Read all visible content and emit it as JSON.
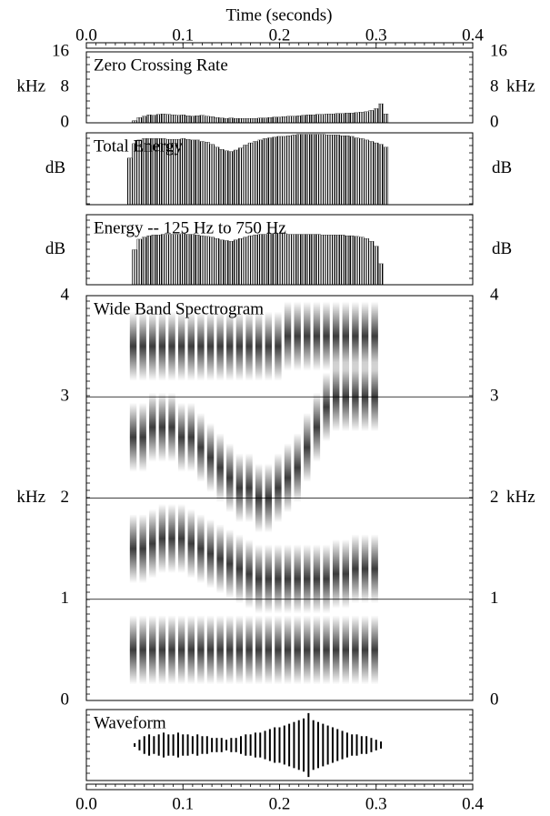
{
  "chart_data": [
    {
      "type": "bar",
      "title": "Zero Crossing Rate",
      "xlabel": "Time (seconds)",
      "ylabel": "kHz",
      "xlim": [
        0,
        0.4
      ],
      "xticks": [
        {
          "value": 0,
          "label": "0.0"
        },
        0.1,
        0.2,
        0.3,
        0.4
      ],
      "ylim": [
        0,
        16
      ],
      "yticks": [
        0,
        8,
        16
      ],
      "color": "#000000",
      "x": [
        0.045,
        0.05,
        0.055,
        0.06,
        0.065,
        0.07,
        0.075,
        0.08,
        0.085,
        0.09,
        0.095,
        0.1,
        0.105,
        0.11,
        0.115,
        0.12,
        0.125,
        0.13,
        0.135,
        0.14,
        0.145,
        0.15,
        0.155,
        0.16,
        0.165,
        0.17,
        0.175,
        0.18,
        0.185,
        0.19,
        0.195,
        0.2,
        0.205,
        0.21,
        0.215,
        0.22,
        0.225,
        0.23,
        0.235,
        0.24,
        0.245,
        0.25,
        0.255,
        0.26,
        0.265,
        0.27,
        0.275,
        0.28,
        0.285,
        0.29,
        0.295,
        0.3,
        0.305,
        0.31,
        0.315
      ],
      "values": [
        0,
        0.5,
        1.2,
        1.5,
        1.8,
        1.7,
        1.9,
        2,
        1.9,
        1.8,
        1.7,
        1.8,
        1.6,
        1.5,
        1.6,
        1.7,
        1.5,
        1.4,
        1.2,
        1.1,
        1.0,
        1.1,
        1.0,
        1.0,
        1.0,
        1.0,
        1.0,
        1.1,
        1.1,
        1.2,
        1.3,
        1.3,
        1.4,
        1.5,
        1.5,
        1.6,
        1.7,
        1.8,
        1.8,
        1.9,
        1.9,
        2.0,
        2.0,
        2.1,
        2.1,
        2.2,
        2.2,
        2.3,
        2.4,
        2.5,
        2.8,
        3.2,
        4.3,
        2.0,
        0
      ]
    },
    {
      "type": "bar",
      "title": "Total Energy",
      "ylabel": "dB",
      "xlim": [
        0,
        0.4
      ],
      "ylim": [
        0,
        100
      ],
      "color": "#000000",
      "x": [
        0.045,
        0.05,
        0.055,
        0.06,
        0.065,
        0.07,
        0.075,
        0.08,
        0.085,
        0.09,
        0.095,
        0.1,
        0.105,
        0.11,
        0.115,
        0.12,
        0.125,
        0.13,
        0.135,
        0.14,
        0.145,
        0.15,
        0.155,
        0.16,
        0.165,
        0.17,
        0.175,
        0.18,
        0.185,
        0.19,
        0.195,
        0.2,
        0.205,
        0.21,
        0.215,
        0.22,
        0.225,
        0.23,
        0.235,
        0.24,
        0.245,
        0.25,
        0.255,
        0.26,
        0.265,
        0.27,
        0.275,
        0.28,
        0.285,
        0.29,
        0.295,
        0.3,
        0.305,
        0.31,
        0.315
      ],
      "values": [
        65,
        85,
        90,
        92,
        92,
        92,
        92,
        92,
        91,
        91,
        91,
        92,
        91,
        90,
        90,
        88,
        87,
        84,
        80,
        77,
        75,
        74,
        76,
        79,
        83,
        86,
        88,
        90,
        92,
        93,
        94,
        95,
        95,
        96,
        97,
        98,
        98,
        98,
        98,
        98,
        98,
        97,
        97,
        97,
        96,
        96,
        95,
        93,
        92,
        90,
        88,
        86,
        84,
        80,
        0
      ]
    },
    {
      "type": "bar",
      "title": "Energy -- 125 Hz to 750 Hz",
      "ylabel": "dB",
      "xlim": [
        0,
        0.4
      ],
      "ylim": [
        0,
        100
      ],
      "color": "#000000",
      "x": [
        0.045,
        0.05,
        0.055,
        0.06,
        0.065,
        0.07,
        0.075,
        0.08,
        0.085,
        0.09,
        0.095,
        0.1,
        0.105,
        0.11,
        0.115,
        0.12,
        0.125,
        0.13,
        0.135,
        0.14,
        0.145,
        0.15,
        0.155,
        0.16,
        0.165,
        0.17,
        0.175,
        0.18,
        0.185,
        0.19,
        0.195,
        0.2,
        0.205,
        0.21,
        0.215,
        0.22,
        0.225,
        0.23,
        0.235,
        0.24,
        0.245,
        0.25,
        0.255,
        0.26,
        0.265,
        0.27,
        0.275,
        0.28,
        0.285,
        0.29,
        0.295,
        0.3,
        0.305,
        0.31,
        0.315
      ],
      "values": [
        0,
        50,
        65,
        68,
        70,
        71,
        71,
        72,
        72,
        72,
        72,
        73,
        72,
        72,
        71,
        70,
        69,
        68,
        66,
        64,
        63,
        62,
        64,
        66,
        68,
        70,
        71,
        72,
        72,
        73,
        73,
        73,
        73,
        72,
        72,
        72,
        72,
        72,
        72,
        72,
        71,
        71,
        71,
        71,
        71,
        70,
        70,
        69,
        68,
        66,
        62,
        55,
        30,
        0,
        0
      ]
    },
    {
      "type": "spectrogram",
      "title": "Wide Band Spectrogram",
      "ylabel": "kHz",
      "xlim": [
        0,
        0.4
      ],
      "ylim": [
        0,
        4
      ],
      "yticks": [
        0,
        1,
        2,
        3,
        4
      ],
      "grid": true,
      "x": [
        0.05,
        0.06,
        0.07,
        0.08,
        0.09,
        0.1,
        0.11,
        0.12,
        0.13,
        0.14,
        0.15,
        0.16,
        0.17,
        0.18,
        0.19,
        0.2,
        0.21,
        0.22,
        0.23,
        0.24,
        0.25,
        0.26,
        0.27,
        0.28,
        0.29,
        0.3
      ],
      "series": [
        {
          "color": "#000000",
          "values": [
            0.5,
            0.5,
            0.5,
            0.5,
            0.5,
            0.5,
            0.5,
            0.5,
            0.5,
            0.5,
            0.5,
            0.5,
            0.5,
            0.5,
            0.5,
            0.5,
            0.5,
            0.5,
            0.5,
            0.5,
            0.5,
            0.5,
            0.5,
            0.5,
            0.5,
            0.5
          ]
        },
        {
          "color": "#000000",
          "values": [
            1.5,
            1.5,
            1.55,
            1.6,
            1.6,
            1.6,
            1.55,
            1.5,
            1.45,
            1.4,
            1.35,
            1.3,
            1.25,
            1.2,
            1.2,
            1.2,
            1.2,
            1.2,
            1.2,
            1.2,
            1.2,
            1.25,
            1.25,
            1.3,
            1.3,
            1.3
          ]
        },
        {
          "color": "#000000",
          "values": [
            2.6,
            2.6,
            2.7,
            2.7,
            2.7,
            2.6,
            2.6,
            2.5,
            2.4,
            2.3,
            2.2,
            2.1,
            2.1,
            2.0,
            2.0,
            2.1,
            2.2,
            2.3,
            2.5,
            2.7,
            2.9,
            3.0,
            3.0,
            3.0,
            3.0,
            3.0
          ]
        },
        {
          "color": "#000000",
          "values": [
            3.5,
            3.5,
            3.5,
            3.5,
            3.5,
            3.5,
            3.5,
            3.5,
            3.5,
            3.5,
            3.5,
            3.5,
            3.5,
            3.5,
            3.5,
            3.5,
            3.6,
            3.6,
            3.6,
            3.6,
            3.6,
            3.6,
            3.6,
            3.6,
            3.6,
            3.6
          ]
        }
      ]
    },
    {
      "type": "waveform",
      "title": "Waveform",
      "xlim": [
        0,
        0.4
      ],
      "xticks": [
        {
          "value": 0,
          "label": "0.0"
        },
        0.1,
        0.2,
        0.3,
        0.4
      ],
      "ylim": [
        -1,
        1
      ],
      "color": "#000000",
      "x": [
        0.045,
        0.05,
        0.055,
        0.06,
        0.065,
        0.07,
        0.075,
        0.08,
        0.085,
        0.09,
        0.095,
        0.1,
        0.105,
        0.11,
        0.115,
        0.12,
        0.125,
        0.13,
        0.135,
        0.14,
        0.145,
        0.15,
        0.155,
        0.16,
        0.165,
        0.17,
        0.175,
        0.18,
        0.185,
        0.19,
        0.195,
        0.2,
        0.205,
        0.21,
        0.215,
        0.22,
        0.225,
        0.23,
        0.235,
        0.24,
        0.245,
        0.25,
        0.255,
        0.26,
        0.265,
        0.27,
        0.275,
        0.28,
        0.285,
        0.29,
        0.295,
        0.3,
        0.305,
        0.31,
        0.315
      ],
      "values": [
        0,
        0.05,
        0.15,
        0.25,
        0.3,
        0.25,
        0.3,
        0.35,
        0.3,
        0.3,
        0.35,
        0.3,
        0.3,
        0.25,
        0.3,
        0.25,
        0.25,
        0.2,
        0.2,
        0.2,
        0.15,
        0.2,
        0.2,
        0.25,
        0.3,
        0.3,
        0.35,
        0.35,
        0.4,
        0.45,
        0.5,
        0.5,
        0.55,
        0.6,
        0.65,
        0.7,
        0.75,
        0.9,
        0.7,
        0.65,
        0.6,
        0.55,
        0.5,
        0.45,
        0.4,
        0.35,
        0.3,
        0.3,
        0.25,
        0.25,
        0.2,
        0.15,
        0.1,
        0,
        0
      ]
    }
  ]
}
